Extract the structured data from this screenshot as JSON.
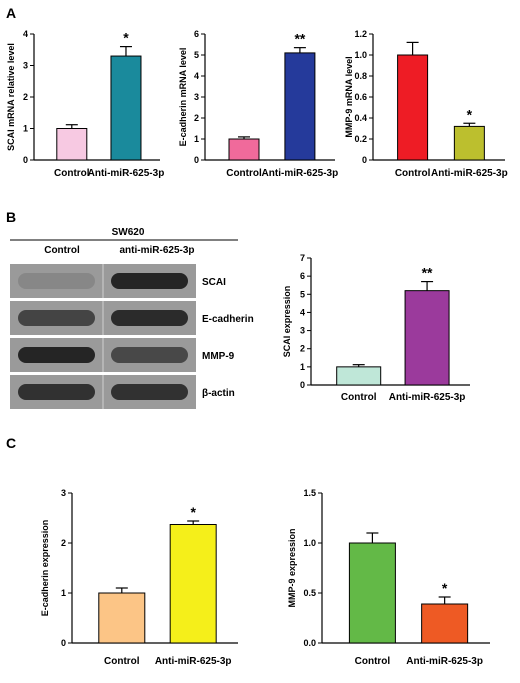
{
  "panels": {
    "a": "A",
    "b": "B",
    "c": "C"
  },
  "blot": {
    "cell_line": "SW620",
    "lanes": [
      "Control",
      "anti-miR-625-3p"
    ],
    "bands": [
      "SCAI",
      "E-cadherin",
      "MMP-9",
      "β-actin"
    ],
    "intensity": [
      [
        0.12,
        0.9
      ],
      [
        0.65,
        0.85
      ],
      [
        0.9,
        0.62
      ],
      [
        0.8,
        0.8
      ]
    ]
  },
  "chart_data": [
    {
      "type": "bar",
      "panel": "A",
      "categories": [
        "Control",
        "Anti-miR-625-3p"
      ],
      "values": [
        1.0,
        3.3
      ],
      "errors": [
        0.12,
        0.3
      ],
      "significance": [
        "",
        "*"
      ],
      "colors": [
        "#f7c9e2",
        "#1a8a9c"
      ],
      "ylabel": "SCAI mRNA relative level",
      "ylim": [
        0,
        4
      ],
      "yticks": [
        0,
        1,
        2,
        3,
        4
      ]
    },
    {
      "type": "bar",
      "panel": "A",
      "categories": [
        "Control",
        "Anti-miR-625-3p"
      ],
      "values": [
        1.0,
        5.1
      ],
      "errors": [
        0.1,
        0.25
      ],
      "significance": [
        "",
        "**"
      ],
      "colors": [
        "#f06a9b",
        "#253a9b"
      ],
      "ylabel": "E-cadherin mRNA level",
      "ylim": [
        0,
        6
      ],
      "yticks": [
        0,
        1,
        2,
        3,
        4,
        5,
        6
      ]
    },
    {
      "type": "bar",
      "panel": "A",
      "categories": [
        "Control",
        "Anti-miR-625-3p"
      ],
      "values": [
        1.0,
        0.32
      ],
      "errors": [
        0.12,
        0.03
      ],
      "significance": [
        "",
        "*"
      ],
      "colors": [
        "#ee1c25",
        "#bcbf2e"
      ],
      "ylabel": "MMP-9 mRNA level",
      "ylim": [
        0,
        1.2
      ],
      "yticks": [
        "0",
        "0.2",
        "0.4",
        "0.6",
        "0.8",
        "1.0",
        "1.2"
      ]
    },
    {
      "type": "bar",
      "panel": "B",
      "categories": [
        "Control",
        "Anti-miR-625-3p"
      ],
      "values": [
        1.0,
        5.2
      ],
      "errors": [
        0.12,
        0.5
      ],
      "significance": [
        "",
        "**"
      ],
      "colors": [
        "#bfe7d8",
        "#9b3a9c"
      ],
      "ylabel": "SCAI expression",
      "ylim": [
        0,
        7
      ],
      "yticks": [
        0,
        1,
        2,
        3,
        4,
        5,
        6,
        7
      ]
    },
    {
      "type": "bar",
      "panel": "C",
      "categories": [
        "Control",
        "Anti-miR-625-3p"
      ],
      "values": [
        1.0,
        2.37
      ],
      "errors": [
        0.1,
        0.07
      ],
      "significance": [
        "",
        "*"
      ],
      "colors": [
        "#fcc586",
        "#f5ef1a"
      ],
      "ylabel": "E-cadherin expression",
      "ylim": [
        0,
        3
      ],
      "yticks": [
        0,
        1,
        2,
        3
      ]
    },
    {
      "type": "bar",
      "panel": "C",
      "categories": [
        "Control",
        "Anti-miR-625-3p"
      ],
      "values": [
        1.0,
        0.39
      ],
      "errors": [
        0.1,
        0.07
      ],
      "significance": [
        "",
        "*"
      ],
      "colors": [
        "#63b947",
        "#ee5a24"
      ],
      "ylabel": "MMP-9 expression",
      "ylim": [
        0,
        1.5
      ],
      "yticks": [
        "0.0",
        "0.5",
        "1.0",
        "1.5"
      ]
    }
  ]
}
